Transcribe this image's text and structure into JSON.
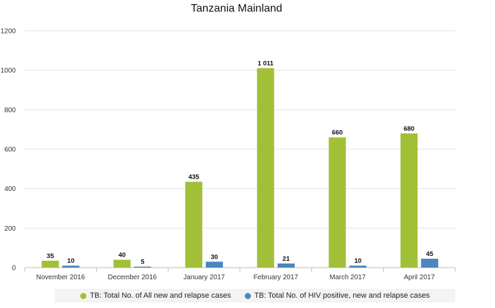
{
  "chart_data": {
    "type": "bar",
    "title": "Tanzania Mainland",
    "categories": [
      "November 2016",
      "December 2016",
      "January 2017",
      "February 2017",
      "March 2017",
      "April 2017"
    ],
    "series": [
      {
        "name": "TB: Total No. of All new and relapse cases",
        "color": "#a2c037",
        "values": [
          35,
          40,
          435,
          1011,
          660,
          680
        ],
        "labels": [
          "35",
          "40",
          "435",
          "1 011",
          "660",
          "680"
        ]
      },
      {
        "name": "TB: Total No. of HIV positive, new and relapse cases",
        "color": "#4b86c0",
        "values": [
          10,
          5,
          30,
          21,
          10,
          45
        ],
        "labels": [
          "10",
          "5",
          "30",
          "21",
          "10",
          "45"
        ]
      }
    ],
    "yticks": [
      "0",
      "200",
      "400",
      "600",
      "800",
      "1000",
      "1200"
    ],
    "ylim": [
      0,
      1200
    ],
    "grid": true,
    "legend_position": "bottom"
  }
}
